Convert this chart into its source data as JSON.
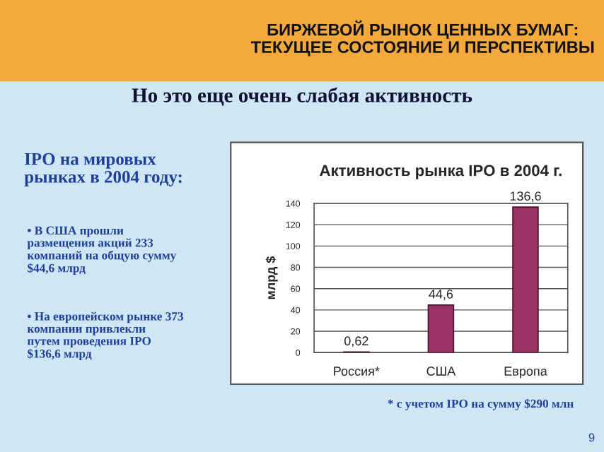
{
  "chart_data": {
    "type": "bar",
    "title": "Активность рынка IPO в 2004 г.",
    "ylabel": "млрд $",
    "categories": [
      "Россия*",
      "США",
      "Европа"
    ],
    "values": [
      0.62,
      44.6,
      136.6
    ],
    "color": "#993366",
    "value_labels": [
      "0,62",
      "44,6",
      "136,6"
    ],
    "ylim": [
      0,
      140
    ],
    "yticks": [
      0,
      20,
      40,
      60,
      80,
      100,
      120,
      140
    ],
    "grid": "y",
    "annotations": [
      "БИРЖЕВОЙ РЫНОК ЦЕННЫХ БУМАГ:\nТЕКУЩЕЕ СОСТОЯНИЕ И ПЕРСПЕКТИВЫ",
      "Но это еще очень слабая активность",
      "IPO на мировых\nрынках в 2004 году:",
      "• В США прошли\nразмещения акций 233\nкомпаний на общую сумму\n$44,6 млрд",
      "• На европейском рынке 373\nкомпании привлекли\nпутем проведения IPO\n$136,6 млрд",
      "* с учетом IPO на сумму $290 млн",
      "9"
    ]
  }
}
